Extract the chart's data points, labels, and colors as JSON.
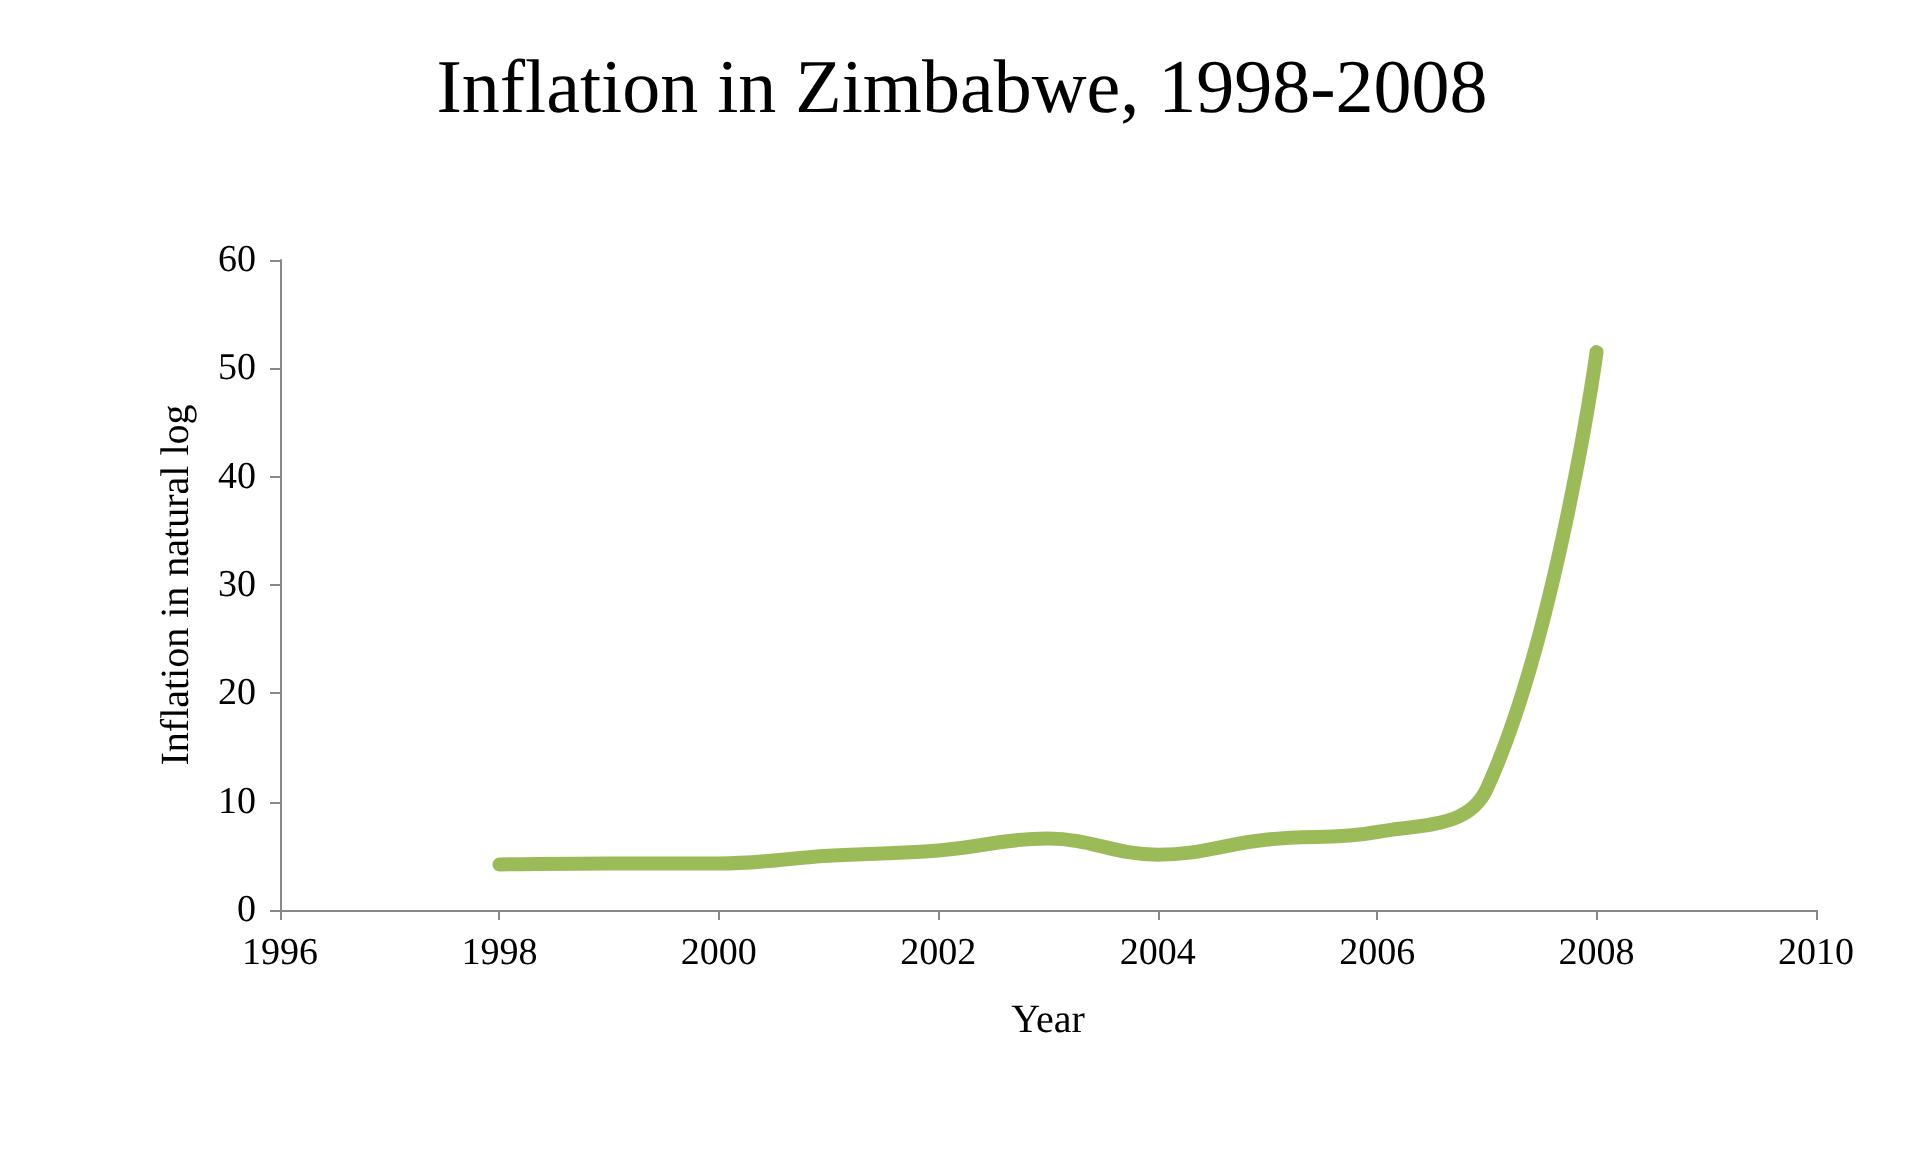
{
  "chart_data": {
    "type": "line",
    "title": "Inflation in Zimbabwe, 1998-2008",
    "xlabel": "Year",
    "ylabel": "Inflation in natural log",
    "x": [
      1998,
      1999,
      2000,
      2001,
      2002,
      2003,
      2004,
      2005,
      2006,
      2007,
      2008
    ],
    "series": [
      {
        "color": "#9bbb59",
        "values": [
          4.2,
          4.3,
          4.3,
          5,
          5.5,
          6.6,
          5.1,
          6.5,
          7.2,
          11.2,
          51.5
        ]
      }
    ],
    "xlim": [
      1996,
      2010
    ],
    "xticks": [
      1996,
      1998,
      2000,
      2002,
      2004,
      2006,
      2008,
      2010
    ],
    "ylim": [
      0,
      60
    ],
    "yticks": [
      0,
      10,
      20,
      30,
      40,
      50,
      60
    ],
    "grid": false,
    "line_style": "solid"
  }
}
